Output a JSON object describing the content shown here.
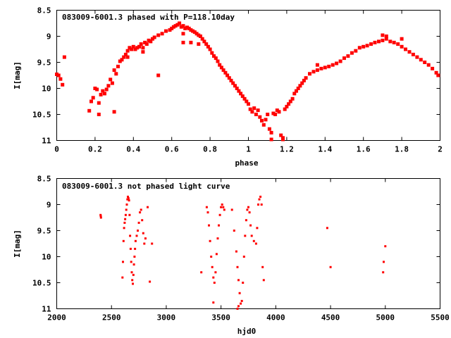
{
  "chart_data": [
    {
      "type": "scatter",
      "title": "083009-6001.3 phased with P=118.10day",
      "xlabel": "phase",
      "ylabel": "I[mag]",
      "xlim": [
        0,
        2
      ],
      "ylim": [
        8.5,
        11
      ],
      "y_inverted": true,
      "grid": false,
      "legend": "none",
      "marker_color": "#ff0000",
      "xticks": [
        "0",
        "0.2",
        "0.4",
        "0.6",
        "0.8",
        "1",
        "1.2",
        "1.4",
        "1.6",
        "1.8",
        "2"
      ],
      "yticks": [
        "8.5",
        "9",
        "9.5",
        "10",
        "10.5",
        "11"
      ],
      "series": [
        {
          "x": [
            0.0,
            0.01,
            0.02,
            0.03,
            0.17,
            0.18,
            0.19,
            0.2,
            0.21,
            0.22,
            0.23,
            0.24,
            0.25,
            0.26,
            0.27,
            0.28,
            0.29,
            0.3,
            0.31,
            0.32,
            0.33,
            0.34,
            0.35,
            0.36,
            0.37,
            0.38,
            0.39,
            0.4,
            0.41,
            0.42,
            0.43,
            0.44,
            0.45,
            0.46,
            0.47,
            0.48,
            0.49,
            0.5,
            0.51,
            0.53,
            0.55,
            0.57,
            0.59,
            0.6,
            0.61,
            0.62,
            0.63,
            0.64,
            0.65,
            0.66,
            0.67,
            0.68,
            0.69,
            0.7,
            0.71,
            0.72,
            0.73,
            0.74,
            0.75,
            0.76,
            0.77,
            0.78,
            0.79,
            0.8,
            0.81,
            0.82,
            0.83,
            0.84,
            0.85,
            0.86,
            0.87,
            0.88,
            0.89,
            0.9,
            0.91,
            0.92,
            0.93,
            0.94,
            0.95,
            0.96,
            0.97,
            0.98,
            0.99,
            1.0,
            1.01,
            1.02,
            1.03,
            1.04,
            1.05,
            1.06,
            1.07,
            1.08,
            1.09,
            1.1,
            1.11,
            1.12,
            1.13,
            1.14,
            1.15,
            1.16,
            1.17,
            1.18,
            1.19,
            1.2,
            1.21,
            1.22,
            1.23,
            1.24,
            1.25,
            1.26,
            1.27,
            1.28,
            1.29,
            1.3,
            1.32,
            1.34,
            1.36,
            1.38,
            1.4,
            1.42,
            1.44,
            1.46,
            1.48,
            1.5,
            1.52,
            1.54,
            1.56,
            1.58,
            1.6,
            1.62,
            1.64,
            1.66,
            1.68,
            1.7,
            1.72,
            1.74,
            1.76,
            1.78,
            1.8,
            1.82,
            1.84,
            1.86,
            1.88,
            1.9,
            1.92,
            1.94,
            1.96,
            1.98,
            1.99,
            0.22,
            0.3,
            0.53,
            0.37,
            1.12,
            1.18,
            0.66,
            0.7,
            0.74,
            0.66,
            1.7,
            1.72,
            1.8,
            0.04,
            0.45,
            1.36
          ],
          "y": [
            9.73,
            9.75,
            9.82,
            9.93,
            10.43,
            10.25,
            10.18,
            10.0,
            10.02,
            10.28,
            10.12,
            10.05,
            10.1,
            10.02,
            9.95,
            9.83,
            9.9,
            9.65,
            9.72,
            9.58,
            9.48,
            9.45,
            9.4,
            9.35,
            9.28,
            9.22,
            9.25,
            9.2,
            9.25,
            9.22,
            9.2,
            9.15,
            9.22,
            9.12,
            9.15,
            9.08,
            9.1,
            9.05,
            9.02,
            8.98,
            8.95,
            8.9,
            8.88,
            8.85,
            8.82,
            8.8,
            8.78,
            8.75,
            8.82,
            8.8,
            8.85,
            8.83,
            8.85,
            8.88,
            8.9,
            8.92,
            8.95,
            8.98,
            9.0,
            9.05,
            9.1,
            9.15,
            9.2,
            9.25,
            9.32,
            9.38,
            9.42,
            9.48,
            9.55,
            9.6,
            9.65,
            9.7,
            9.75,
            9.8,
            9.85,
            9.9,
            9.95,
            10.0,
            10.05,
            10.1,
            10.15,
            10.2,
            10.25,
            10.3,
            10.4,
            10.45,
            10.38,
            10.5,
            10.42,
            10.55,
            10.62,
            10.7,
            10.6,
            10.5,
            10.78,
            10.85,
            10.48,
            10.5,
            10.42,
            10.45,
            10.9,
            10.95,
            10.4,
            10.35,
            10.3,
            10.25,
            10.2,
            10.1,
            10.05,
            10.0,
            9.95,
            9.9,
            9.85,
            9.8,
            9.72,
            9.68,
            9.65,
            9.62,
            9.6,
            9.58,
            9.55,
            9.52,
            9.48,
            9.42,
            9.38,
            9.32,
            9.28,
            9.22,
            9.2,
            9.18,
            9.15,
            9.12,
            9.1,
            9.08,
            9.05,
            9.1,
            9.12,
            9.15,
            9.2,
            9.25,
            9.3,
            9.35,
            9.4,
            9.45,
            9.5,
            9.55,
            9.62,
            9.7,
            9.75,
            10.5,
            10.45,
            9.75,
            9.4,
            10.98,
            10.98,
            9.12,
            9.12,
            9.15,
            8.95,
            8.98,
            9.0,
            9.05,
            9.4,
            9.3,
            9.55
          ]
        }
      ]
    },
    {
      "type": "scatter",
      "title": "083009-6001.3 not phased light curve",
      "xlabel": "hjd0",
      "ylabel": "I[mag]",
      "xlim": [
        2000,
        5500
      ],
      "ylim": [
        8.5,
        11
      ],
      "y_inverted": true,
      "grid": false,
      "legend": "none",
      "marker_color": "#ff0000",
      "xticks": [
        "2000",
        "2500",
        "3000",
        "3500",
        "4000",
        "4500",
        "5000",
        "5500"
      ],
      "yticks": [
        "8.5",
        "9",
        "9.5",
        "10",
        "10.5",
        "11"
      ],
      "series": [
        {
          "x": [
            2400,
            2402,
            2404,
            2600,
            2605,
            2610,
            2615,
            2620,
            2625,
            2630,
            2635,
            2640,
            2645,
            2650,
            2655,
            2660,
            2665,
            2670,
            2675,
            2680,
            2685,
            2690,
            2695,
            2700,
            2705,
            2710,
            2715,
            2720,
            2730,
            2740,
            2750,
            2760,
            2770,
            2780,
            2790,
            2800,
            2810,
            2830,
            2850,
            2870,
            3320,
            3370,
            3380,
            3390,
            3400,
            3410,
            3420,
            3430,
            3440,
            3450,
            3460,
            3470,
            3480,
            3490,
            3500,
            3510,
            3520,
            3530,
            3600,
            3620,
            3640,
            3650,
            3660,
            3670,
            3680,
            3690,
            3700,
            3710,
            3720,
            3730,
            3740,
            3750,
            3760,
            3770,
            3780,
            3800,
            3820,
            3830,
            3840,
            3850,
            3860,
            3870,
            3880,
            3890,
            4470,
            4500,
            4980,
            4985,
            5000,
            3430,
            3660,
            3650
          ],
          "y": [
            9.2,
            9.22,
            9.25,
            10.4,
            10.1,
            9.7,
            9.45,
            9.35,
            9.28,
            9.2,
            9.1,
            9.0,
            8.9,
            8.85,
            8.88,
            8.92,
            9.2,
            9.6,
            9.85,
            10.1,
            10.3,
            10.45,
            10.52,
            10.35,
            10.15,
            10.0,
            9.85,
            9.7,
            9.6,
            9.5,
            9.35,
            9.15,
            9.1,
            9.3,
            9.55,
            9.75,
            9.65,
            9.05,
            10.48,
            9.75,
            10.3,
            9.05,
            9.15,
            9.4,
            9.7,
            10.0,
            10.2,
            10.4,
            10.5,
            10.3,
            9.95,
            9.65,
            9.4,
            9.2,
            9.05,
            9.0,
            9.05,
            9.1,
            9.1,
            9.5,
            9.9,
            10.2,
            10.45,
            10.7,
            10.9,
            10.85,
            10.5,
            10.0,
            9.6,
            9.3,
            9.1,
            9.05,
            9.15,
            9.4,
            9.6,
            9.7,
            9.75,
            9.45,
            9.0,
            8.9,
            8.85,
            9.0,
            10.2,
            10.45,
            9.45,
            10.2,
            10.3,
            10.1,
            9.8,
            10.88,
            10.95,
            11.0
          ]
        }
      ]
    }
  ]
}
